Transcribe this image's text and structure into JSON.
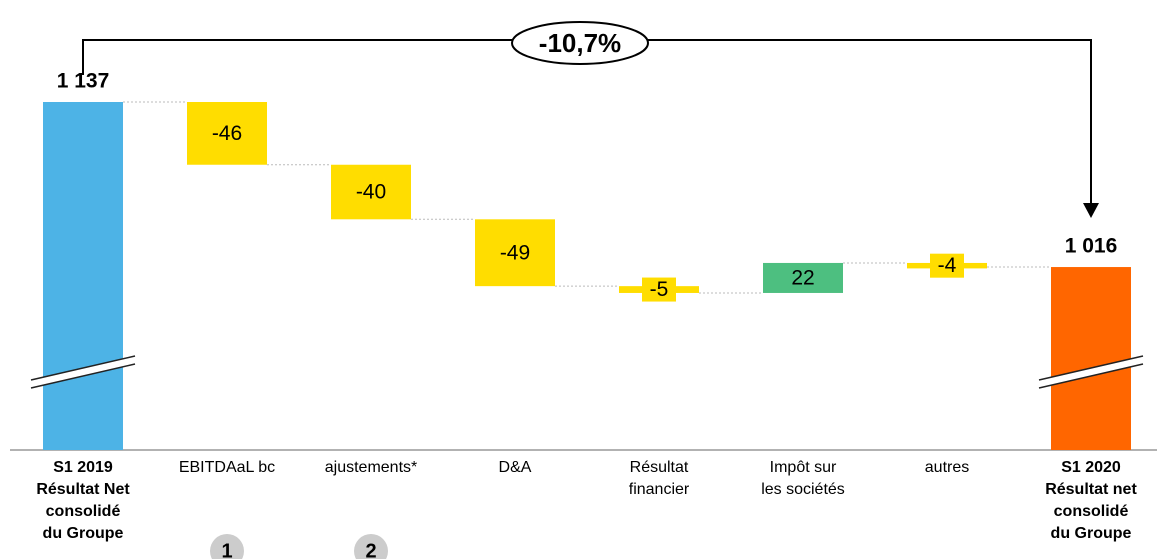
{
  "chart_data": {
    "type": "waterfall",
    "categories": [
      [
        "S1 2019",
        "Résultat Net",
        "consolidé",
        "du Groupe"
      ],
      [
        "EBITDAaL bc"
      ],
      [
        "ajustements*"
      ],
      [
        "D&A"
      ],
      [
        "Résultat",
        "financier"
      ],
      [
        "Impôt sur",
        "les sociétés"
      ],
      [
        "autres"
      ],
      [
        "S1 2020",
        "Résultat net",
        "consolidé",
        "du Groupe"
      ]
    ],
    "values": [
      1137,
      -46,
      -40,
      -49,
      -5,
      22,
      -4,
      1016
    ],
    "value_labels": [
      "1 137",
      "-46",
      "-40",
      "-49",
      "-5",
      "22",
      "-4",
      "1 016"
    ],
    "colors": [
      "#4db3e6",
      "#ffdd00",
      "#ffdd00",
      "#ffdd00",
      "#ffdd00",
      "#4dbf80",
      "#ffdd00",
      "#ff6600"
    ],
    "badges": [
      null,
      "1",
      "2",
      null,
      null,
      null,
      null,
      null
    ],
    "annotation": "-10,7%"
  }
}
